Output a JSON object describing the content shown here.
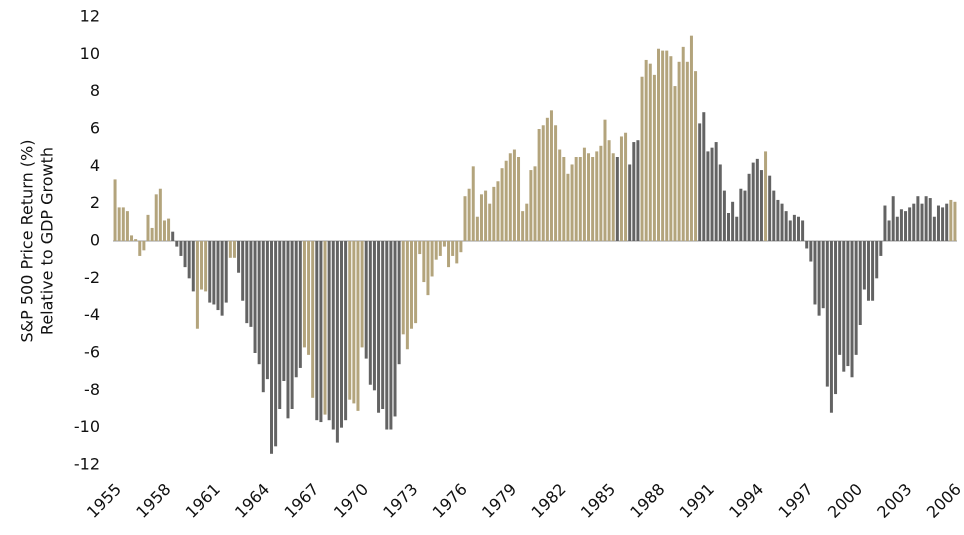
{
  "chart_data": {
    "type": "bar",
    "ylabel": [
      "S&P 500 Price Return (%)",
      "Relative to GDP Growth"
    ],
    "categories": [
      "1955",
      null,
      null,
      null,
      null,
      null,
      null,
      null,
      null,
      null,
      null,
      null,
      "1958",
      null,
      null,
      null,
      null,
      null,
      null,
      null,
      null,
      null,
      null,
      null,
      "1961",
      null,
      null,
      null,
      null,
      null,
      null,
      null,
      null,
      null,
      null,
      null,
      "1964",
      null,
      null,
      null,
      null,
      null,
      null,
      null,
      null,
      null,
      null,
      null,
      "1967",
      null,
      null,
      null,
      null,
      null,
      null,
      null,
      null,
      null,
      null,
      null,
      "1970",
      null,
      null,
      null,
      null,
      null,
      null,
      null,
      null,
      null,
      null,
      null,
      "1973",
      null,
      null,
      null,
      null,
      null,
      null,
      null,
      null,
      null,
      null,
      null,
      "1976",
      null,
      null,
      null,
      null,
      null,
      null,
      null,
      null,
      null,
      null,
      null,
      "1979",
      null,
      null,
      null,
      null,
      null,
      null,
      null,
      null,
      null,
      null,
      null,
      "1982",
      null,
      null,
      null,
      null,
      null,
      null,
      null,
      null,
      null,
      null,
      null,
      "1985",
      null,
      null,
      null,
      null,
      null,
      null,
      null,
      null,
      null,
      null,
      null,
      "1988",
      null,
      null,
      null,
      null,
      null,
      null,
      null,
      null,
      null,
      null,
      null,
      "1991",
      null,
      null,
      null,
      null,
      null,
      null,
      null,
      null,
      null,
      null,
      null,
      "1994",
      null,
      null,
      null,
      null,
      null,
      null,
      null,
      null,
      null,
      null,
      null,
      "1997",
      null,
      null,
      null,
      null,
      null,
      null,
      null,
      null,
      null,
      null,
      null,
      "2000",
      null,
      null,
      null,
      null,
      null,
      null,
      null,
      null,
      null,
      null,
      null,
      "2003",
      null,
      null,
      null,
      null,
      null,
      null,
      null,
      null,
      null,
      null,
      null,
      "2006"
    ],
    "values": [
      3.3,
      1.8,
      1.8,
      1.6,
      0.3,
      0.1,
      -0.8,
      -0.5,
      1.4,
      0.7,
      2.5,
      2.8,
      1.1,
      1.2,
      0.5,
      -0.3,
      -0.8,
      -1.4,
      -2.0,
      -2.7,
      -4.7,
      -2.6,
      -2.7,
      -3.3,
      -3.4,
      -3.7,
      -4.0,
      -3.3,
      -0.9,
      -0.9,
      -1.7,
      -3.2,
      -4.4,
      -4.6,
      -6.0,
      -6.6,
      -8.1,
      -7.4,
      -11.4,
      -11.0,
      -9.0,
      -7.5,
      -9.5,
      -9.0,
      -7.3,
      -6.8,
      -5.7,
      -6.1,
      -8.4,
      -9.6,
      -9.7,
      -9.3,
      -9.6,
      -10.1,
      -10.8,
      -10.0,
      -9.6,
      -8.5,
      -8.7,
      -9.1,
      -5.7,
      -6.3,
      -7.7,
      -8.0,
      -9.2,
      -9.0,
      -10.1,
      -10.1,
      -9.4,
      -6.6,
      -5.0,
      -5.8,
      -4.7,
      -4.4,
      -0.7,
      -2.2,
      -2.9,
      -1.9,
      -1.0,
      -0.8,
      -0.3,
      -1.4,
      -0.8,
      -1.2,
      -0.6,
      2.4,
      2.8,
      4.0,
      1.3,
      2.5,
      2.7,
      2.0,
      2.9,
      3.2,
      3.9,
      4.3,
      4.7,
      4.9,
      4.5,
      1.6,
      2.0,
      3.8,
      4.0,
      6.0,
      6.2,
      6.6,
      7.0,
      6.2,
      4.9,
      4.5,
      3.6,
      4.1,
      4.5,
      4.5,
      5.0,
      4.7,
      4.5,
      4.8,
      5.1,
      6.5,
      5.4,
      4.7,
      4.5,
      5.6,
      5.8,
      4.1,
      5.3,
      5.4,
      8.8,
      9.7,
      9.5,
      8.9,
      10.3,
      10.2,
      10.2,
      9.9,
      8.3,
      9.6,
      10.4,
      9.6,
      11.0,
      9.1,
      6.3,
      6.9,
      4.8,
      5.0,
      5.3,
      4.1,
      2.7,
      1.5,
      2.1,
      1.3,
      2.8,
      2.7,
      3.6,
      4.2,
      4.4,
      3.8,
      4.8,
      3.5,
      2.7,
      2.2,
      2.0,
      1.6,
      1.1,
      1.4,
      1.3,
      1.1,
      -0.4,
      -1.1,
      -3.4,
      -4.0,
      -3.6,
      -7.8,
      -9.2,
      -8.2,
      -6.1,
      -7.0,
      -6.7,
      -7.3,
      -6.1,
      -4.5,
      -2.6,
      -3.2,
      -3.2,
      -2.0,
      -0.8,
      1.9,
      1.1,
      2.4,
      1.3,
      1.7,
      1.6,
      1.8,
      2.0,
      2.4,
      2.0,
      2.4,
      2.3,
      1.3,
      1.9,
      1.8,
      2.0,
      2.2,
      2.1
    ],
    "colors": [
      "#b3a47c",
      "#b3a47c",
      "#b3a47c",
      "#b3a47c",
      "#b3a47c",
      "#b3a47c",
      "#b3a47c",
      "#b3a47c",
      "#b3a47c",
      "#b3a47c",
      "#b3a47c",
      "#b3a47c",
      "#b3a47c",
      "#b3a47c",
      "#636363",
      "#636363",
      "#636363",
      "#636363",
      "#636363",
      "#636363",
      "#b3a47c",
      "#b3a47c",
      "#b3a47c",
      "#636363",
      "#636363",
      "#636363",
      "#636363",
      "#636363",
      "#b3a47c",
      "#b3a47c",
      "#636363",
      "#636363",
      "#636363",
      "#636363",
      "#636363",
      "#636363",
      "#636363",
      "#636363",
      "#636363",
      "#636363",
      "#636363",
      "#636363",
      "#636363",
      "#636363",
      "#636363",
      "#636363",
      "#b3a47c",
      "#b3a47c",
      "#b3a47c",
      "#636363",
      "#636363",
      "#b3a47c",
      "#636363",
      "#636363",
      "#636363",
      "#636363",
      "#636363",
      "#b3a47c",
      "#b3a47c",
      "#b3a47c",
      "#b3a47c",
      "#636363",
      "#636363",
      "#636363",
      "#636363",
      "#636363",
      "#636363",
      "#636363",
      "#636363",
      "#636363",
      "#b3a47c",
      "#b3a47c",
      "#b3a47c",
      "#b3a47c",
      "#b3a47c",
      "#b3a47c",
      "#b3a47c",
      "#b3a47c",
      "#b3a47c",
      "#b3a47c",
      "#b3a47c",
      "#b3a47c",
      "#b3a47c",
      "#b3a47c",
      "#b3a47c",
      "#b3a47c",
      "#b3a47c",
      "#b3a47c",
      "#b3a47c",
      "#b3a47c",
      "#b3a47c",
      "#b3a47c",
      "#b3a47c",
      "#b3a47c",
      "#b3a47c",
      "#b3a47c",
      "#b3a47c",
      "#b3a47c",
      "#b3a47c",
      "#b3a47c",
      "#b3a47c",
      "#b3a47c",
      "#b3a47c",
      "#b3a47c",
      "#b3a47c",
      "#b3a47c",
      "#b3a47c",
      "#b3a47c",
      "#b3a47c",
      "#b3a47c",
      "#b3a47c",
      "#b3a47c",
      "#b3a47c",
      "#b3a47c",
      "#b3a47c",
      "#b3a47c",
      "#b3a47c",
      "#b3a47c",
      "#b3a47c",
      "#b3a47c",
      "#b3a47c",
      "#b3a47c",
      "#636363",
      "#b3a47c",
      "#b3a47c",
      "#636363",
      "#636363",
      "#636363",
      "#b3a47c",
      "#b3a47c",
      "#b3a47c",
      "#b3a47c",
      "#b3a47c",
      "#b3a47c",
      "#b3a47c",
      "#b3a47c",
      "#b3a47c",
      "#b3a47c",
      "#b3a47c",
      "#b3a47c",
      "#b3a47c",
      "#b3a47c",
      "#636363",
      "#636363",
      "#636363",
      "#636363",
      "#636363",
      "#636363",
      "#636363",
      "#636363",
      "#636363",
      "#636363",
      "#636363",
      "#636363",
      "#636363",
      "#636363",
      "#636363",
      "#636363",
      "#b3a47c",
      "#636363",
      "#636363",
      "#636363",
      "#636363",
      "#636363",
      "#636363",
      "#636363",
      "#636363",
      "#636363",
      "#636363",
      "#636363",
      "#636363",
      "#636363",
      "#636363",
      "#636363",
      "#636363",
      "#636363",
      "#636363",
      "#636363",
      "#636363",
      "#636363",
      "#636363",
      "#636363",
      "#636363",
      "#636363",
      "#636363",
      "#636363",
      "#636363",
      "#636363",
      "#636363",
      "#636363",
      "#636363",
      "#636363",
      "#636363",
      "#636363",
      "#636363",
      "#636363",
      "#636363",
      "#636363",
      "#636363",
      "#636363",
      "#636363",
      "#636363",
      "#636363",
      "#b3a47c",
      "#b3a47c"
    ],
    "ylim": [
      -12,
      12
    ],
    "yticks": [
      -12,
      -10,
      -8,
      -6,
      -4,
      -2,
      0,
      2,
      4,
      6,
      8,
      10,
      12
    ],
    "grid": false
  }
}
